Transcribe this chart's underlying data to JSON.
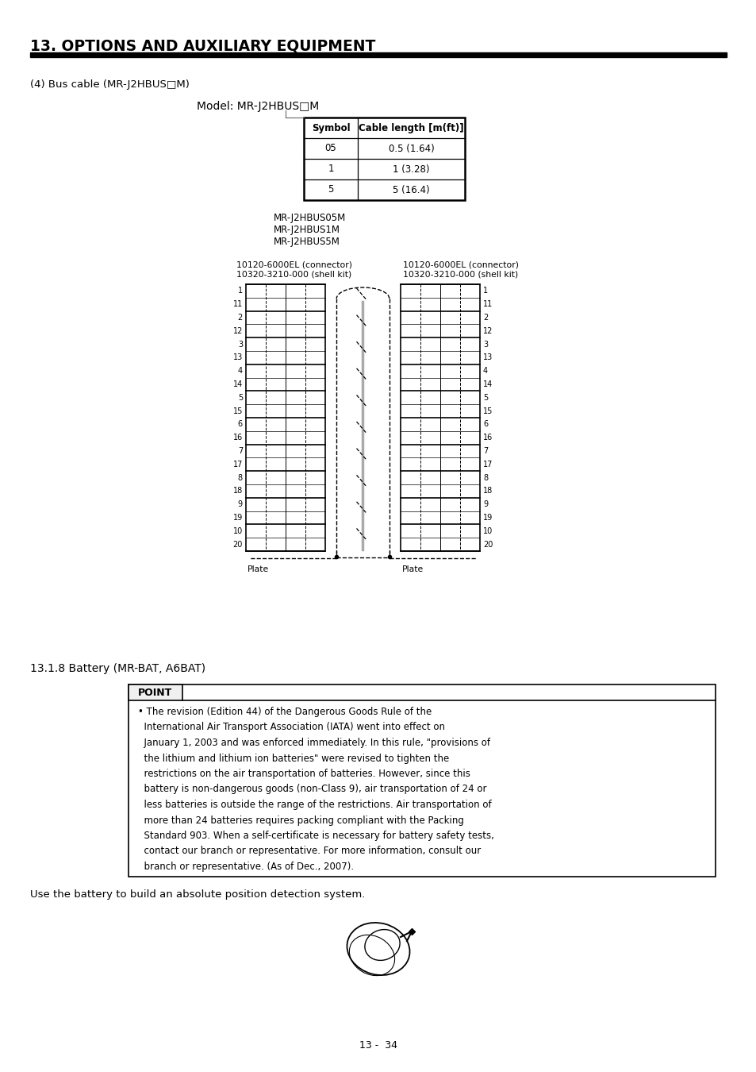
{
  "title": "13. OPTIONS AND AUXILIARY EQUIPMENT",
  "section_bus_cable": "(4) Bus cable (MR-J2HBUS□M)",
  "model_label": "Model: MR-J2HBUS□M",
  "table_headers": [
    "Symbol",
    "Cable length [m(ft)]"
  ],
  "table_rows": [
    [
      "05",
      "0.5 (1.64)"
    ],
    [
      "1",
      "1 (3.28)"
    ],
    [
      "5",
      "5 (16.4)"
    ]
  ],
  "model_names": [
    "MR-J2HBUS05M",
    "MR-J2HBUS1M",
    "MR-J2HBUS5M"
  ],
  "connector_label": "10120-6000EL (connector)",
  "shell_label": "10320-3210-000 (shell kit)",
  "pin_numbers": [
    "1",
    "11",
    "2",
    "12",
    "3",
    "13",
    "4",
    "14",
    "5",
    "15",
    "6",
    "16",
    "7",
    "17",
    "8",
    "18",
    "9",
    "19",
    "10",
    "20"
  ],
  "plate_label": "Plate",
  "section_battery": "13.1.8 Battery (MR-BAT, A6BAT)",
  "point_title": "POINT",
  "point_lines": [
    "• The revision (Edition 44) of the Dangerous Goods Rule of the",
    "  International Air Transport Association (IATA) went into effect on",
    "  January 1, 2003 and was enforced immediately. In this rule, \"provisions of",
    "  the lithium and lithium ion batteries\" were revised to tighten the",
    "  restrictions on the air transportation of batteries. However, since this",
    "  battery is non-dangerous goods (non-Class 9), air transportation of 24 or",
    "  less batteries is outside the range of the restrictions. Air transportation of",
    "  more than 24 batteries requires packing compliant with the Packing",
    "  Standard 903. When a self-certificate is necessary for battery safety tests,",
    "  contact our branch or representative. For more information, consult our",
    "  branch or representative. (As of Dec., 2007)."
  ],
  "bottom_text": "Use the battery to build an absolute position detection system.",
  "page_label": "13 -  34",
  "bg_color": "#ffffff",
  "text_color": "#000000"
}
